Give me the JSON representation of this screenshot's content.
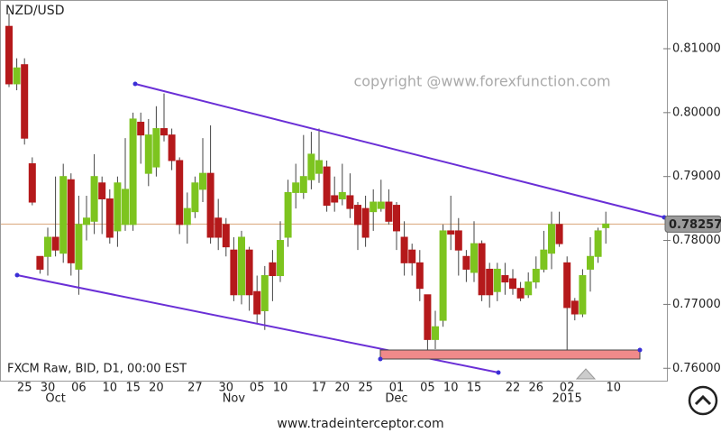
{
  "chart_data": {
    "type": "candlestick",
    "title": "NZD/USD",
    "watermark": "copyright @www.forexfunction.com",
    "feed_label": "FXCM Raw, BID, D1, 00:00 EST",
    "footer": "www.tradeinterceptor.com",
    "categories": [
      null,
      null,
      "25",
      null,
      null,
      "30",
      null,
      null,
      null,
      "06",
      null,
      null,
      null,
      "10",
      null,
      null,
      "15",
      null,
      null,
      "20",
      null,
      null,
      null,
      null,
      "27",
      null,
      null,
      null,
      "30",
      null,
      null,
      null,
      "05",
      null,
      null,
      "10",
      null,
      null,
      null,
      null,
      "17",
      null,
      null,
      "20",
      null,
      null,
      "25",
      null,
      null,
      null,
      "01",
      null,
      null,
      null,
      "05",
      null,
      null,
      "10",
      null,
      null,
      "15",
      null,
      null,
      null,
      null,
      "22",
      null,
      null,
      "26",
      null,
      null,
      null,
      "02",
      null,
      null,
      null,
      null,
      null,
      "10"
    ],
    "month_labels": [
      null,
      null,
      null,
      null,
      null,
      null,
      "Oct",
      null,
      null,
      null,
      null,
      null,
      null,
      null,
      null,
      null,
      null,
      null,
      null,
      null,
      null,
      null,
      null,
      null,
      null,
      null,
      null,
      null,
      null,
      "Nov",
      null,
      null,
      null,
      null,
      null,
      null,
      null,
      null,
      null,
      null,
      null,
      null,
      null,
      null,
      null,
      null,
      null,
      null,
      null,
      null,
      "Dec",
      null,
      null,
      null,
      null,
      null,
      null,
      null,
      null,
      null,
      null,
      null,
      null,
      null,
      null,
      null,
      null,
      null,
      null,
      null,
      null,
      null,
      "2015",
      null,
      null,
      null,
      null,
      null,
      null
    ],
    "open": [
      0.8135,
      0.8045,
      0.8075,
      0.792,
      0.7775,
      0.7775,
      0.7805,
      0.778,
      0.7895,
      0.7755,
      0.7825,
      0.783,
      0.789,
      0.7865,
      0.7815,
      0.7825,
      0.7825,
      0.7985,
      0.7905,
      0.7915,
      0.7975,
      0.7965,
      0.7925,
      0.7825,
      0.7845,
      0.788,
      0.7905,
      0.7835,
      0.7825,
      0.7785,
      0.7715,
      0.7785,
      0.772,
      0.769,
      0.7765,
      0.7745,
      0.7805,
      0.7875,
      0.7875,
      0.7895,
      0.7905,
      0.7915,
      0.787,
      0.7865,
      0.787,
      0.7855,
      0.785,
      0.7845,
      0.785,
      0.786,
      0.7855,
      0.7805,
      0.7785,
      0.7765,
      0.7715,
      0.7645,
      0.7675,
      0.7815,
      0.7815,
      0.7775,
      0.775,
      0.7795,
      0.7755,
      0.772,
      0.7745,
      0.774,
      0.7725,
      0.7715,
      0.7735,
      0.7755,
      0.778,
      0.7825,
      0.7765,
      0.7705,
      0.7685,
      0.7755,
      0.7775,
      0.782,
      null
    ],
    "high": [
      0.8155,
      0.8085,
      0.8085,
      0.793,
      0.7775,
      0.782,
      0.79,
      0.792,
      0.7905,
      0.787,
      0.787,
      0.7935,
      0.79,
      0.788,
      0.79,
      0.796,
      0.8,
      0.8,
      0.799,
      0.801,
      0.803,
      0.7975,
      0.793,
      0.7875,
      0.79,
      0.796,
      0.798,
      0.7865,
      0.7835,
      0.7805,
      0.7815,
      0.779,
      0.7745,
      0.776,
      0.7785,
      0.783,
      0.7895,
      0.792,
      0.7965,
      0.797,
      0.7975,
      0.7925,
      0.79,
      0.792,
      0.7905,
      0.786,
      0.787,
      0.788,
      0.7895,
      0.788,
      0.786,
      0.783,
      0.7795,
      0.7785,
      0.7715,
      0.769,
      0.7825,
      0.787,
      0.7835,
      0.7785,
      0.783,
      0.78,
      0.7765,
      0.7765,
      0.7765,
      0.7755,
      0.7735,
      0.775,
      0.7775,
      0.7815,
      0.7845,
      0.7845,
      0.7775,
      0.771,
      0.7755,
      0.7805,
      0.782,
      0.7845,
      null
    ],
    "low": [
      0.804,
      0.8035,
      0.795,
      0.7855,
      0.7748,
      0.7745,
      0.7775,
      0.7765,
      0.7745,
      0.7715,
      0.78,
      0.781,
      0.781,
      0.7795,
      0.779,
      0.7815,
      0.7815,
      0.792,
      0.7885,
      0.79,
      0.7955,
      0.791,
      0.781,
      0.7795,
      0.7835,
      0.786,
      0.7795,
      0.7785,
      0.7775,
      0.7705,
      0.77,
      0.769,
      0.767,
      0.766,
      0.7705,
      0.7735,
      0.779,
      0.785,
      0.7865,
      0.788,
      0.789,
      0.7845,
      0.7845,
      0.7855,
      0.7835,
      0.7785,
      0.779,
      0.7815,
      0.7845,
      0.7825,
      0.7785,
      0.7745,
      0.7745,
      0.7705,
      0.7625,
      0.763,
      0.7665,
      0.7785,
      0.7745,
      0.7735,
      0.7735,
      0.7705,
      0.7695,
      0.7705,
      0.7715,
      0.7715,
      0.7705,
      0.771,
      0.7725,
      0.775,
      0.7755,
      0.779,
      0.7625,
      0.7675,
      0.768,
      0.772,
      0.7765,
      0.7795,
      null
    ],
    "close": [
      0.8045,
      0.807,
      0.796,
      0.786,
      0.7755,
      0.7805,
      0.7785,
      0.79,
      0.7765,
      0.7825,
      0.7835,
      0.79,
      0.7865,
      0.7805,
      0.789,
      0.788,
      0.799,
      0.7965,
      0.7965,
      0.7975,
      0.7965,
      0.7925,
      0.7825,
      0.785,
      0.789,
      0.7905,
      0.7805,
      0.7805,
      0.779,
      0.7715,
      0.7805,
      0.7715,
      0.7685,
      0.7745,
      0.7745,
      0.78,
      0.7875,
      0.789,
      0.79,
      0.7935,
      0.7925,
      0.7855,
      0.786,
      0.7875,
      0.785,
      0.7825,
      0.7805,
      0.786,
      0.786,
      0.783,
      0.7815,
      0.7765,
      0.7765,
      0.7725,
      0.7645,
      0.7665,
      0.7815,
      0.781,
      0.7785,
      0.7755,
      0.7795,
      0.7715,
      0.7715,
      0.7755,
      0.7735,
      0.7725,
      0.771,
      0.7735,
      0.7755,
      0.7785,
      0.7825,
      0.7795,
      0.7695,
      0.7685,
      0.7745,
      0.7775,
      0.7815,
      0.78257,
      null
    ],
    "up_color": "#7dc41f",
    "down_color": "#b5191b",
    "last_price": 0.78257,
    "last_price_color": "#d9a57a",
    "ylim": [
      0.75806,
      0.81762
    ],
    "yticks": [
      {
        "value": 0.76,
        "label": "0.76000"
      },
      {
        "value": 0.77,
        "label": "0.77000"
      },
      {
        "value": 0.78,
        "label": "0.78000"
      },
      {
        "value": 0.79,
        "label": "0.79000"
      },
      {
        "value": 0.8,
        "label": "0.80000"
      },
      {
        "value": 0.81,
        "label": "0.81000"
      }
    ]
  }
}
